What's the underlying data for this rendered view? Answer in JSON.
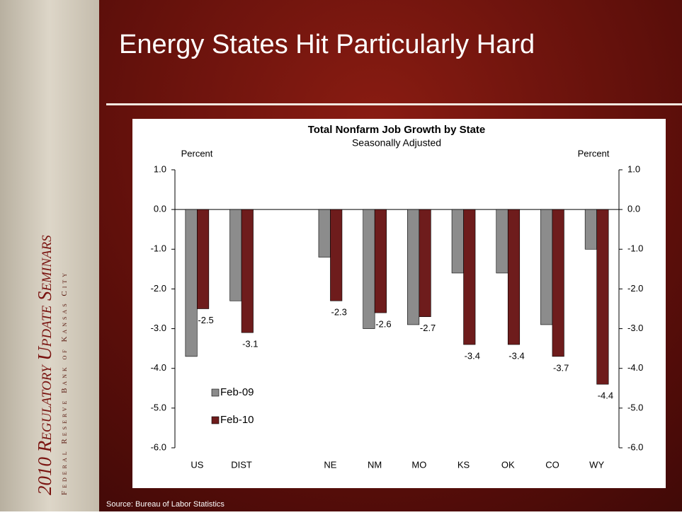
{
  "slide": {
    "title": "Energy States Hit Particularly Hard",
    "sidebar_title": "2010 Regulatory Update Seminars",
    "sidebar_subtitle": "Federal Reserve Bank of Kansas City",
    "source": "Source: Bureau of Labor Statistics"
  },
  "chart_data": {
    "type": "bar",
    "title": "Total Nonfarm Job Growth by State",
    "subtitle": "Seasonally Adjusted",
    "y_label": "Percent",
    "categories": [
      "US",
      "DIST",
      null,
      "NE",
      "NM",
      "MO",
      "KS",
      "OK",
      "CO",
      "WY"
    ],
    "series": [
      {
        "name": "Feb-09",
        "color": "#8c8c8c",
        "values": [
          -3.7,
          -2.3,
          null,
          -1.2,
          -3.0,
          -2.9,
          -1.6,
          -1.6,
          -2.9,
          -1.0
        ]
      },
      {
        "name": "Feb-10",
        "color": "#6e1c1c",
        "values": [
          -2.5,
          -3.1,
          null,
          -2.3,
          -2.6,
          -2.7,
          -3.4,
          -3.4,
          -3.7,
          -4.4
        ],
        "data_labels": true
      }
    ],
    "ylim": [
      -6,
      1
    ],
    "yticks": [
      {
        "value": 1,
        "label": "1.0"
      },
      {
        "value": 0,
        "label": "0.0"
      },
      {
        "value": -1,
        "label": "-1.0"
      },
      {
        "value": -2,
        "label": "-2.0"
      },
      {
        "value": -3,
        "label": "-3.0"
      },
      {
        "value": -4,
        "label": "-4.0"
      },
      {
        "value": -5,
        "label": "-5.0"
      },
      {
        "value": -6,
        "label": "-6.0"
      }
    ],
    "legend": "lower left",
    "grid": false
  }
}
